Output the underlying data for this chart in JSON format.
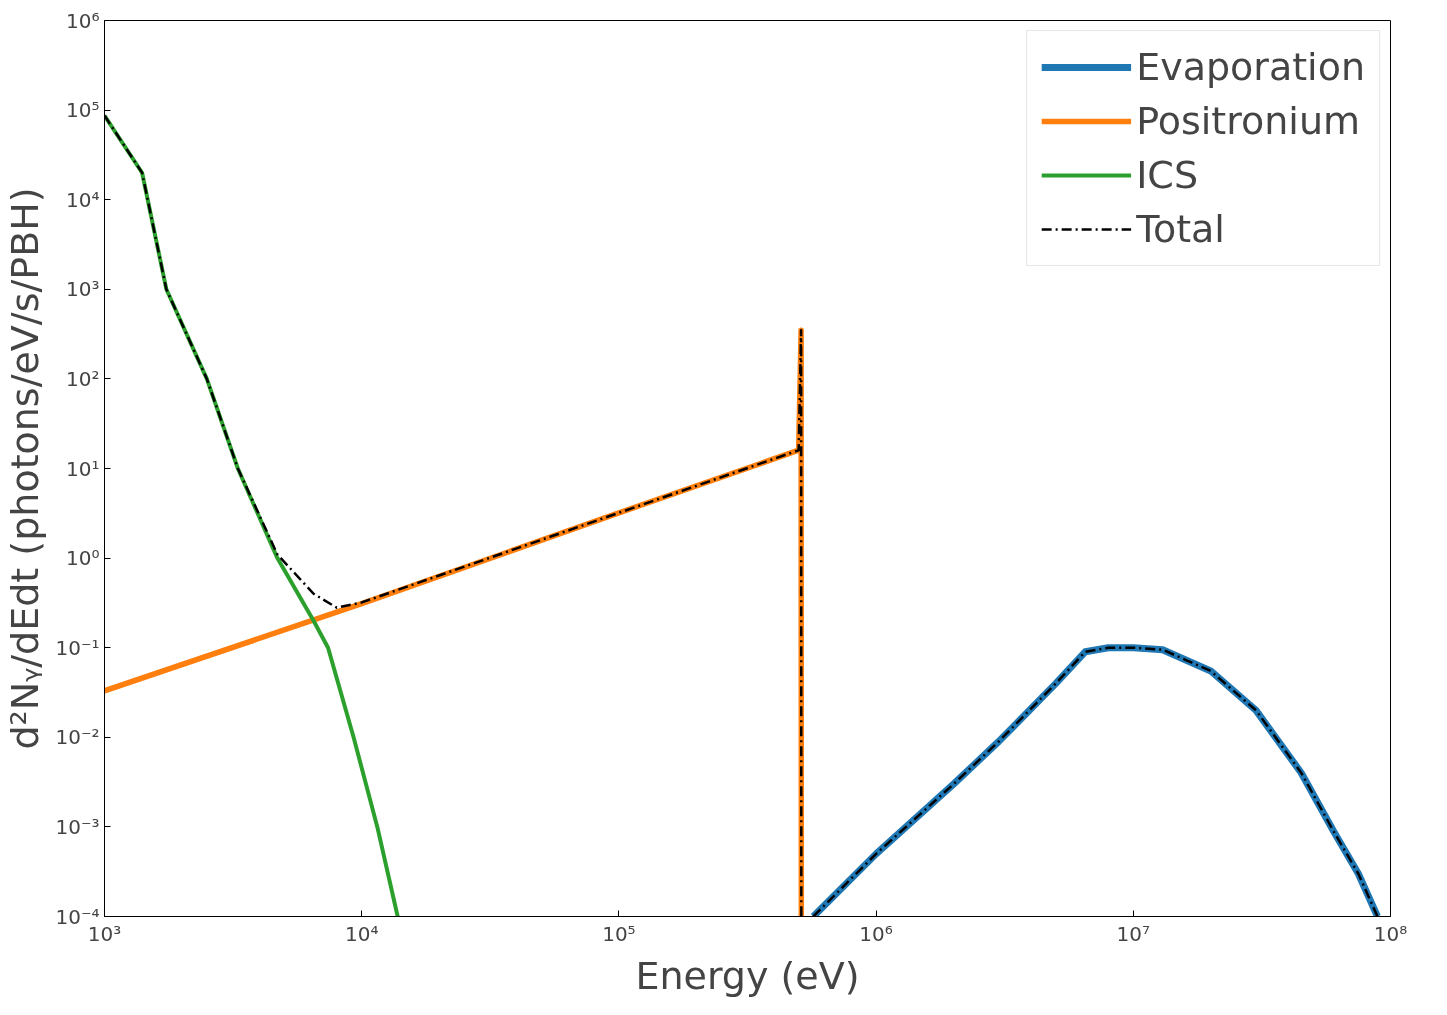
{
  "chart_data": {
    "type": "line",
    "xlabel": "Energy (eV)",
    "ylabel": "d²Nᵧ/dEdt (photons/eV/s/PBH)",
    "log": "xy",
    "legend": "top right",
    "grid": false,
    "xlim": [
      1000,
      100000000
    ],
    "ylim": [
      0.0001,
      1000000
    ],
    "xticks": [
      {
        "value": 1000,
        "label": "10³"
      },
      {
        "value": 10000,
        "label": "10⁴"
      },
      {
        "value": 100000,
        "label": "10⁵"
      },
      {
        "value": 1000000,
        "label": "10⁶"
      },
      {
        "value": 10000000,
        "label": "10⁷"
      },
      {
        "value": 100000000,
        "label": "10⁸"
      }
    ],
    "yticks": [
      {
        "value": 0.0001,
        "label": "10⁻⁴"
      },
      {
        "value": 0.001,
        "label": "10⁻³"
      },
      {
        "value": 0.01,
        "label": "10⁻²"
      },
      {
        "value": 0.1,
        "label": "10⁻¹"
      },
      {
        "value": 1,
        "label": "10⁰"
      },
      {
        "value": 10,
        "label": "10¹"
      },
      {
        "value": 100,
        "label": "10²"
      },
      {
        "value": 1000,
        "label": "10³"
      },
      {
        "value": 10000,
        "label": "10⁴"
      },
      {
        "value": 100000,
        "label": "10⁵"
      },
      {
        "value": 1000000,
        "label": "10⁶"
      }
    ],
    "series": [
      {
        "name": "Evaporation",
        "color": "#1f77b4",
        "line_style": "solid",
        "x": [
          570000,
          1000000,
          2000000,
          3000000,
          5000000,
          6500000,
          8000000,
          10000000,
          13000000,
          20000000,
          30000000,
          45000000,
          60000000,
          75000000,
          89000000
        ],
        "values": [
          0.0001,
          0.0005,
          0.003,
          0.009,
          0.04,
          0.09,
          0.1,
          0.1,
          0.095,
          0.055,
          0.02,
          0.004,
          0.0009,
          0.0003,
          0.0001
        ]
      },
      {
        "name": "Positronium",
        "color": "#ff7f0e",
        "line_style": "solid",
        "x": [
          1000,
          10000,
          100000,
          500000,
          511000,
          512000
        ],
        "values": [
          0.033,
          0.31,
          3.2,
          16,
          350,
          0.0001
        ]
      },
      {
        "name": "ICS",
        "color": "#2ca02c",
        "line_style": "solid",
        "x": [
          1000,
          1400,
          1740,
          2500,
          3300,
          4700,
          6500,
          7400,
          9300,
          11500,
          13800
        ],
        "values": [
          87000,
          20000,
          1000,
          100,
          10,
          1,
          0.2,
          0.1,
          0.01,
          0.001,
          0.0001
        ]
      },
      {
        "name": "Total",
        "color": "#000000",
        "line_style": "dashdot",
        "x": [
          1000,
          1400,
          1740,
          2500,
          3300,
          4700,
          6500,
          8000,
          10000,
          100000,
          500000,
          511000,
          512000,
          513000,
          570000,
          1000000,
          2000000,
          3000000,
          5000000,
          6500000,
          8000000,
          10000000,
          13000000,
          20000000,
          30000000,
          45000000,
          60000000,
          75000000,
          89000000
        ],
        "values": [
          87000,
          20000,
          1000,
          100,
          10,
          1.1,
          0.4,
          0.28,
          0.32,
          3.2,
          16,
          350,
          0.0001,
          null,
          0.0001,
          0.0005,
          0.003,
          0.009,
          0.04,
          0.09,
          0.1,
          0.1,
          0.095,
          0.055,
          0.02,
          0.004,
          0.0009,
          0.0003,
          0.0001
        ]
      }
    ]
  }
}
